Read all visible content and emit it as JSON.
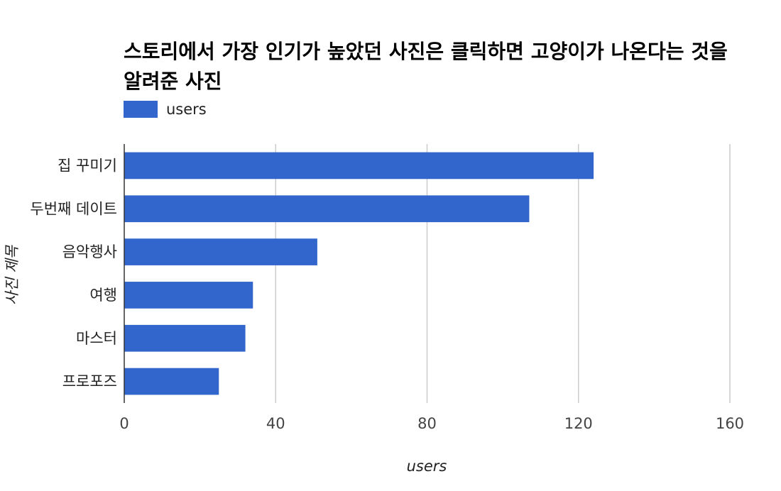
{
  "chart_data": {
    "type": "bar",
    "orientation": "horizontal",
    "title": "스토리에서 가장 인기가 높았던 사진은 클릭하면 고양이가 나온다는 것을 알려준 사진",
    "xlabel": "users",
    "ylabel": "사진 제목",
    "categories": [
      "집 꾸미기",
      "두번째 데이트",
      "음악행사",
      "여행",
      "마스터",
      "프로포즈"
    ],
    "series": [
      {
        "name": "users",
        "values": [
          124,
          107,
          51,
          34,
          32,
          25
        ]
      }
    ],
    "xlim": [
      0,
      160
    ],
    "xticks": [
      "0",
      "40",
      "80",
      "120",
      "160"
    ],
    "grid": true,
    "legend_position": "top-left",
    "colors": {
      "bar": "#3366cc",
      "grid": "#cccccc",
      "axis": "#333333"
    }
  }
}
